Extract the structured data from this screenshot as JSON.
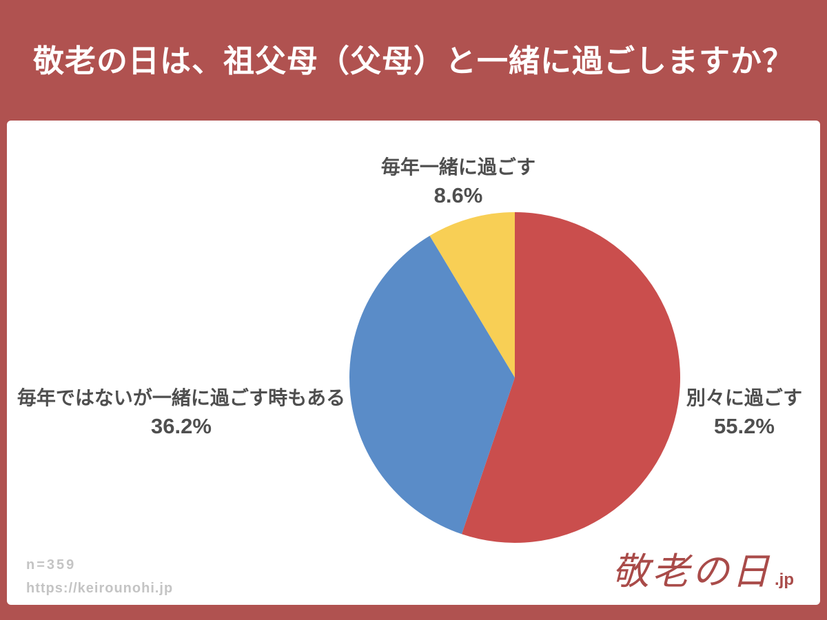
{
  "page": {
    "title": "敬老の日は、祖父母（父母）と一緒に過ごしますか？",
    "footer": {
      "sample_size": "n=359",
      "source_url": "https://keirounohi.jp"
    },
    "logo": {
      "text": "敬老の日",
      "suffix": ".jp"
    }
  },
  "chart_data": {
    "type": "pie",
    "title": "敬老の日は、祖父母（父母）と一緒に過ごしますか？",
    "sample_size": "n=359",
    "start_angle_deg": -90,
    "direction": "clockwise",
    "legend_position": "labels-around-chart",
    "slices": [
      {
        "label": "別々に過ごす",
        "value": 55.2,
        "percent_label": "55.2%",
        "color": "#ca4e4d",
        "label_position": "right"
      },
      {
        "label": "毎年ではないが一緒に過ごす時もある",
        "value": 36.2,
        "percent_label": "36.2%",
        "color": "#5a8cc8",
        "label_position": "left"
      },
      {
        "label": "毎年一緒に過ごす",
        "value": 8.6,
        "percent_label": "8.6%",
        "color": "#f8cf55",
        "label_position": "top"
      }
    ]
  }
}
